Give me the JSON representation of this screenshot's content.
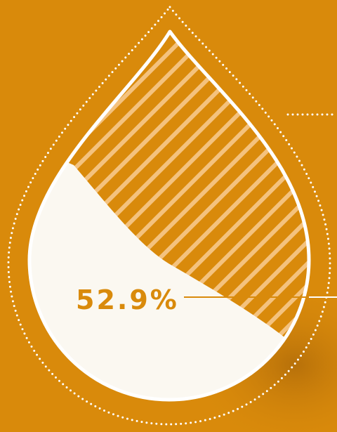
{
  "label": "52.9%"
}
